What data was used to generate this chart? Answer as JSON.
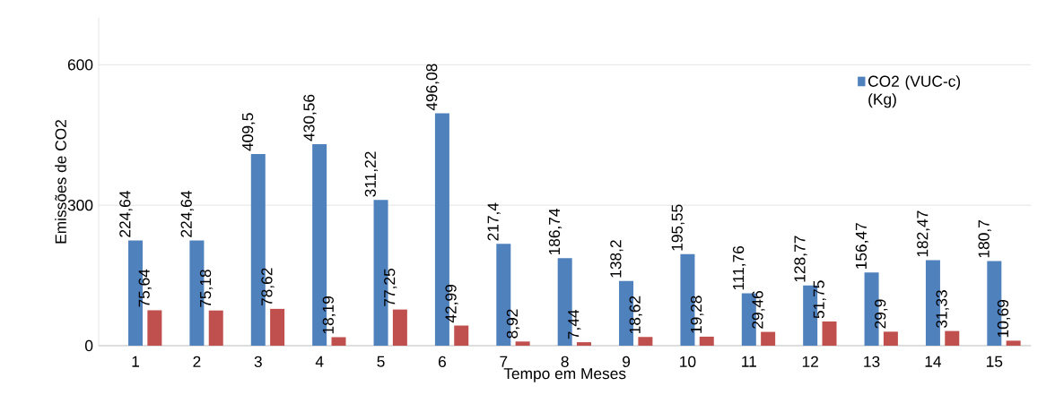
{
  "chart_data": {
    "type": "bar",
    "xlabel": "Tempo em Meses",
    "ylabel": "Emissões de CO2",
    "categories": [
      "1",
      "2",
      "3",
      "4",
      "5",
      "6",
      "7",
      "8",
      "9",
      "10",
      "11",
      "12",
      "13",
      "14",
      "15"
    ],
    "series": [
      {
        "name": "CO2 (VUC-c) (Kg)",
        "color": "#4f81bd",
        "values": [
          224.64,
          224.64,
          409.5,
          430.56,
          311.22,
          496.08,
          217.4,
          186.74,
          138.2,
          195.55,
          111.76,
          128.77,
          156.47,
          182.47,
          180.7
        ],
        "value_labels": [
          "224,64",
          "224,64",
          "409,5",
          "430,56",
          "311,22",
          "496,08",
          "217,4",
          "186,74",
          "138,2",
          "195,55",
          "111,76",
          "128,77",
          "156,47",
          "182,47",
          "180,7"
        ]
      },
      {
        "color": "#c0504d",
        "values": [
          75.64,
          75.18,
          78.62,
          18.19,
          77.25,
          42.99,
          8.92,
          7.44,
          18.62,
          19.28,
          29.46,
          51.75,
          29.9,
          31.33,
          10.69
        ],
        "value_labels": [
          "75,64",
          "75,18",
          "78,62",
          "18,19",
          "77,25",
          "42,99",
          "8,92",
          "7,44",
          "18,62",
          "19,28",
          "29,46",
          "51,75",
          "29,9",
          "31,33",
          "10,69"
        ]
      }
    ],
    "ylim": [
      0,
      700
    ],
    "yticks": [
      0,
      300,
      600
    ],
    "grid": "y",
    "legend": "top right"
  }
}
